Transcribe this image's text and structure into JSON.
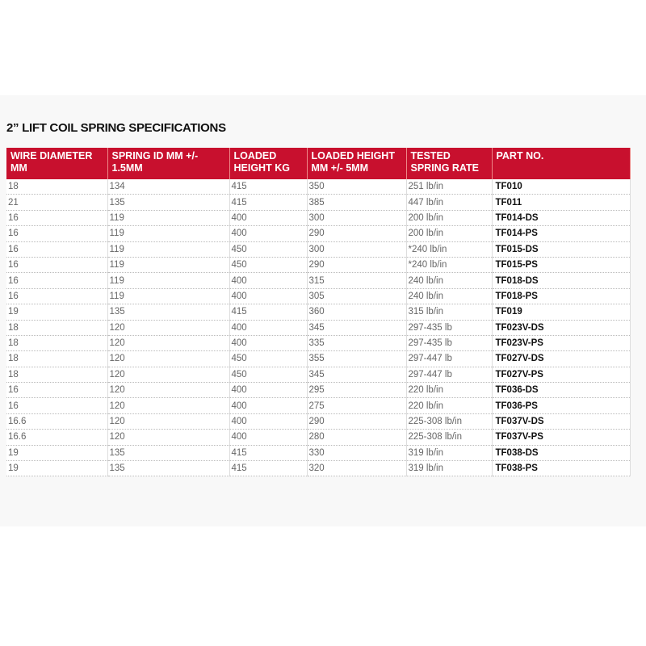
{
  "header": {
    "title": "2” LIFT COIL SPRING SPECIFICATIONS"
  },
  "table": {
    "headers": [
      "WIRE DIAMETER MM",
      "SPRING ID MM +/- 1.5MM",
      "LOADED HEIGHT KG",
      "LOADED HEIGHT MM +/- 5MM",
      "TESTED SPRING RATE",
      "PART NO."
    ],
    "rows": [
      [
        "18",
        "134",
        "415",
        "350",
        "251 lb/in",
        "TF010"
      ],
      [
        "21",
        "135",
        "415",
        "385",
        "447 lb/in",
        "TF011"
      ],
      [
        "16",
        "119",
        "400",
        "300",
        "200 lb/in",
        "TF014-DS"
      ],
      [
        "16",
        "119",
        "400",
        "290",
        "200 lb/in",
        "TF014-PS"
      ],
      [
        "16",
        "119",
        "450",
        "300",
        "*240 lb/in",
        "TF015-DS"
      ],
      [
        "16",
        "119",
        "450",
        "290",
        "*240 lb/in",
        "TF015-PS"
      ],
      [
        "16",
        "119",
        "400",
        "315",
        "240 lb/in",
        "TF018-DS"
      ],
      [
        "16",
        "119",
        "400",
        "305",
        "240 lb/in",
        "TF018-PS"
      ],
      [
        "19",
        "135",
        "415",
        "360",
        "315 lb/in",
        "TF019"
      ],
      [
        "18",
        "120",
        "400",
        "345",
        "297-435 lb",
        "TF023V-DS"
      ],
      [
        "18",
        "120",
        "400",
        "335",
        "297-435 lb",
        "TF023V-PS"
      ],
      [
        "18",
        "120",
        "450",
        "355",
        "297-447 lb",
        "TF027V-DS"
      ],
      [
        "18",
        "120",
        "450",
        "345",
        "297-447 lb",
        "TF027V-PS"
      ],
      [
        "16",
        "120",
        "400",
        "295",
        "220 lb/in",
        "TF036-DS"
      ],
      [
        "16",
        "120",
        "400",
        "275",
        "220 lb/in",
        "TF036-PS"
      ],
      [
        "16.6",
        "120",
        "400",
        "290",
        "225-308 lb/in",
        "TF037V-DS"
      ],
      [
        "16.6",
        "120",
        "400",
        "280",
        "225-308 lb/in",
        "TF037V-PS"
      ],
      [
        "19",
        "135",
        "415",
        "330",
        "319 lb/in",
        "TF038-DS"
      ],
      [
        "19",
        "135",
        "415",
        "320",
        "319 lb/in",
        "TF038-PS"
      ]
    ]
  }
}
